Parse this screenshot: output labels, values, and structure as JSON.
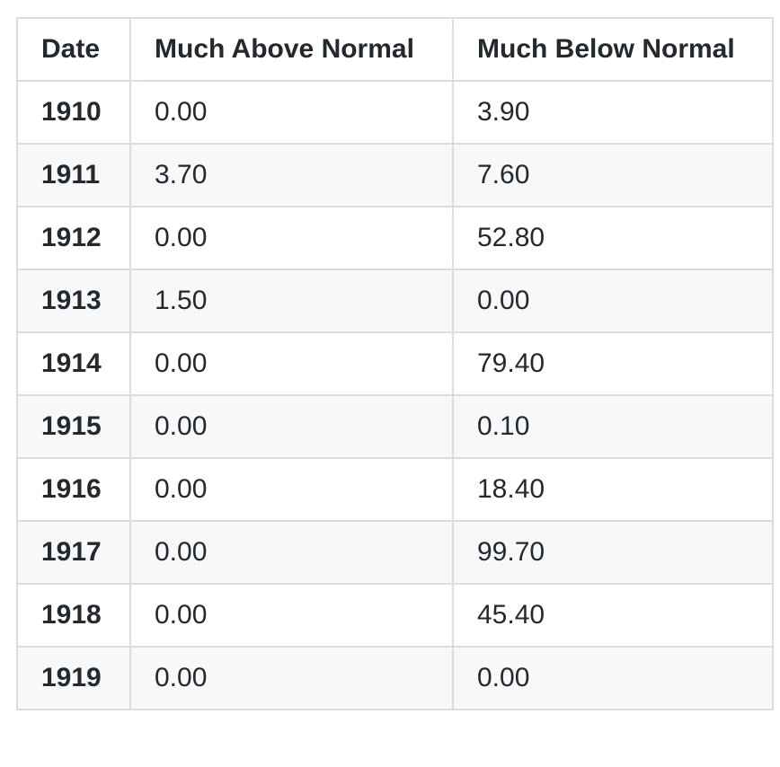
{
  "table": {
    "headers": [
      "Date",
      "Much Above Normal",
      "Much Below Normal"
    ],
    "rows": [
      [
        "1910",
        "0.00",
        "3.90"
      ],
      [
        "1911",
        "3.70",
        "7.60"
      ],
      [
        "1912",
        "0.00",
        "52.80"
      ],
      [
        "1913",
        "1.50",
        "0.00"
      ],
      [
        "1914",
        "0.00",
        "79.40"
      ],
      [
        "1915",
        "0.00",
        "0.10"
      ],
      [
        "1916",
        "0.00",
        "18.40"
      ],
      [
        "1917",
        "0.00",
        "99.70"
      ],
      [
        "1918",
        "0.00",
        "45.40"
      ],
      [
        "1919",
        "0.00",
        "0.00"
      ]
    ]
  },
  "colors": {
    "border": "#d9dde2",
    "stripe": "#f6f8fa",
    "text": "#24292e"
  }
}
